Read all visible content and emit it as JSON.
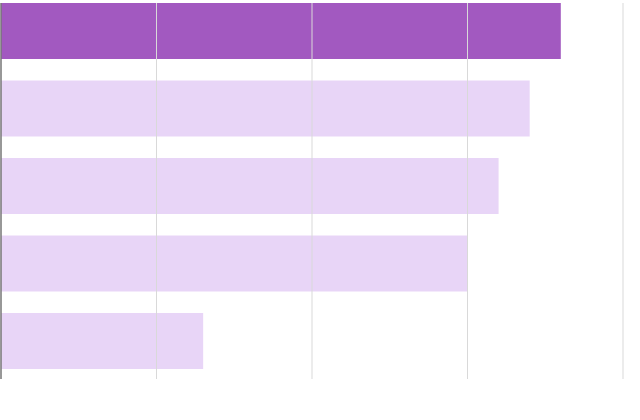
{
  "chart_data": {
    "type": "hbar",
    "categories": [
      null,
      null,
      null,
      null,
      null
    ],
    "values": [
      3.6,
      3.4,
      3.2,
      3.0,
      1.3
    ],
    "colors": [
      "#a259c0",
      "#e8d5f7",
      "#e8d5f7",
      "#e8d5f7",
      "#e8d5f7"
    ],
    "xlim": [
      0,
      4
    ],
    "xticks": [
      0,
      1,
      2,
      3,
      4
    ],
    "grid": true
  }
}
